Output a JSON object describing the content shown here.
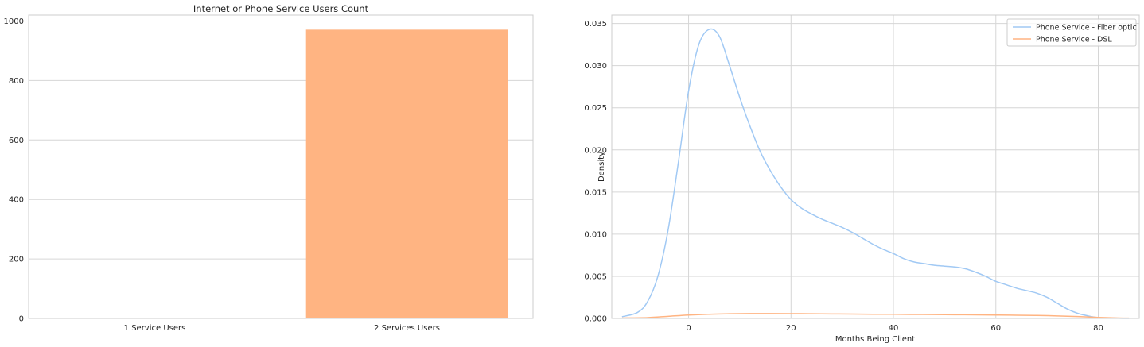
{
  "chart_data": [
    {
      "type": "bar",
      "title": "Internet or Phone Service Users Count",
      "xlabel": "",
      "ylabel": "",
      "categories": [
        "1 Service Users",
        "2 Services Users"
      ],
      "values": [
        0,
        971
      ],
      "ylim": [
        0,
        1020
      ],
      "yticks": [
        0,
        200,
        400,
        600,
        800,
        1000
      ],
      "colors": [
        "#a1c9f4",
        "#ffb482"
      ],
      "grid": true
    },
    {
      "type": "line",
      "title": "",
      "xlabel": "Months Being Client",
      "ylabel": "Density",
      "xlim": [
        -15,
        88
      ],
      "ylim": [
        0,
        0.036
      ],
      "xticks": [
        0,
        20,
        40,
        60,
        80
      ],
      "yticks": [
        0.0,
        0.005,
        0.01,
        0.015,
        0.02,
        0.025,
        0.03,
        0.035
      ],
      "ytick_labels": [
        "0.000",
        "0.005",
        "0.010",
        "0.015",
        "0.020",
        "0.025",
        "0.030",
        "0.035"
      ],
      "legend": "top-right",
      "grid": true,
      "series": [
        {
          "name": "Phone Service - Fiber optic",
          "color": "#a1c9f4",
          "x": [
            -13,
            -10,
            -8,
            -6,
            -4,
            -2,
            0,
            2,
            4,
            6,
            8,
            10,
            12,
            14,
            16,
            18,
            20,
            22,
            24,
            26,
            28,
            30,
            32,
            34,
            36,
            38,
            40,
            42,
            44,
            46,
            48,
            50,
            52,
            54,
            56,
            58,
            60,
            62,
            64,
            66,
            68,
            70,
            72,
            74,
            76,
            78,
            80,
            82,
            84,
            86
          ],
          "y": [
            0.0002,
            0.0007,
            0.002,
            0.005,
            0.0105,
            0.0185,
            0.027,
            0.0325,
            0.0343,
            0.0335,
            0.03,
            0.0262,
            0.0228,
            0.0198,
            0.0175,
            0.0156,
            0.0141,
            0.0131,
            0.0124,
            0.0118,
            0.0113,
            0.0108,
            0.0102,
            0.0095,
            0.0088,
            0.0082,
            0.0077,
            0.0071,
            0.0067,
            0.0065,
            0.0063,
            0.0062,
            0.0061,
            0.0059,
            0.0055,
            0.005,
            0.0044,
            0.004,
            0.0036,
            0.0033,
            0.003,
            0.0025,
            0.0018,
            0.0011,
            0.0006,
            0.0003,
            0.0001,
            5e-05,
            2e-05,
            1e-05
          ]
        },
        {
          "name": "Phone Service - DSL",
          "color": "#ffb482",
          "x": [
            -13,
            -8,
            -4,
            0,
            4,
            8,
            12,
            16,
            20,
            24,
            28,
            32,
            36,
            40,
            44,
            48,
            52,
            56,
            60,
            64,
            68,
            72,
            76,
            80,
            84,
            86
          ],
          "y": [
            5e-05,
            0.0001,
            0.00025,
            0.0004,
            0.0005,
            0.00055,
            0.00058,
            0.00058,
            0.00057,
            0.00055,
            0.00053,
            0.00052,
            0.0005,
            0.00049,
            0.00047,
            0.00046,
            0.00044,
            0.00042,
            0.0004,
            0.00038,
            0.00035,
            0.0003,
            0.00022,
            0.00012,
            5e-05,
            3e-05
          ]
        }
      ]
    }
  ]
}
